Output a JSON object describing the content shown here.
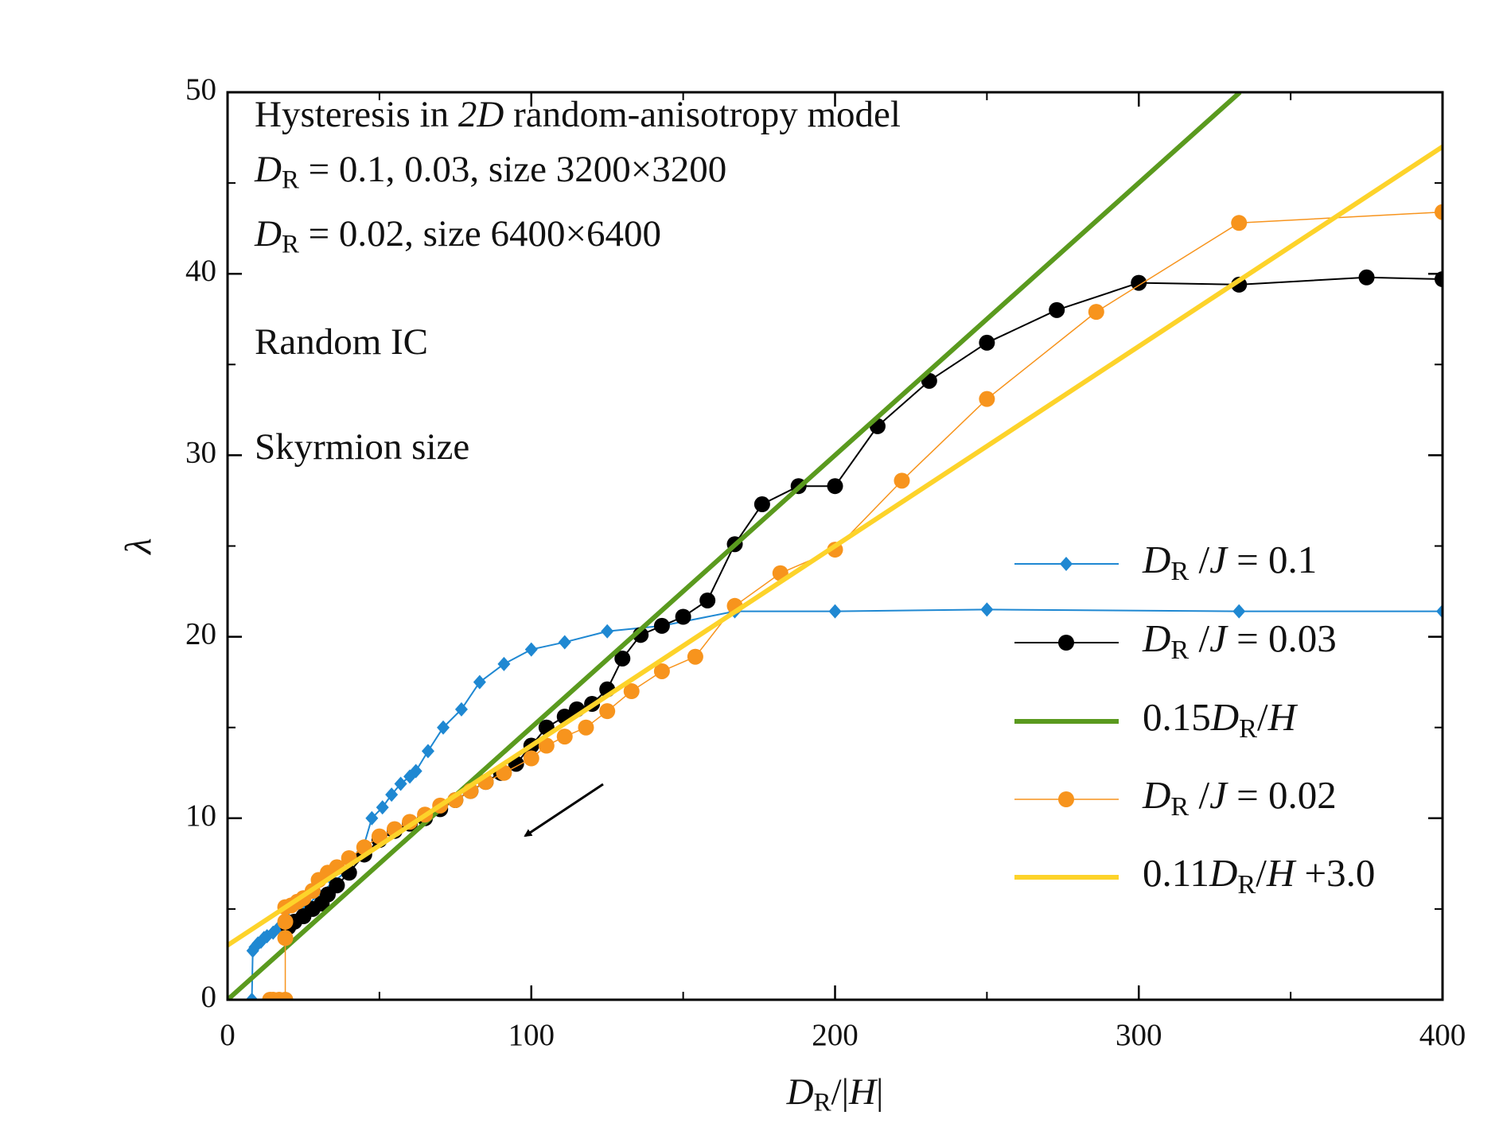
{
  "chart_data": {
    "type": "line",
    "annotations": [
      [
        {
          "t": "Hysteresis in ",
          "s": "n"
        },
        {
          "t": "2D",
          "s": "i"
        },
        {
          "t": " random-anisotropy model",
          "s": "n"
        }
      ],
      [
        {
          "t": "D",
          "s": "i"
        },
        {
          "t": "R",
          "s": "sub"
        },
        {
          "t": " = 0.1, 0.03, size 3200×3200",
          "s": "n"
        }
      ],
      [
        {
          "t": "D",
          "s": "i"
        },
        {
          "t": "R",
          "s": "sub"
        },
        {
          "t": " = 0.02, size 6400×6400",
          "s": "n"
        }
      ],
      [
        {
          "t": "Random IC",
          "s": "n"
        }
      ],
      [
        {
          "t": "Skyrmion size",
          "s": "n"
        }
      ]
    ],
    "xlabel": [
      {
        "t": "D",
        "s": "i"
      },
      {
        "t": "R",
        "s": "sub"
      },
      {
        "t": "/|",
        "s": "n"
      },
      {
        "t": "H",
        "s": "i"
      },
      {
        "t": "|",
        "s": "n"
      }
    ],
    "ylabel": [
      {
        "t": "λ",
        "s": "i"
      }
    ],
    "xlim": [
      0,
      400
    ],
    "ylim": [
      0,
      50
    ],
    "xticks": [
      0,
      100,
      200,
      300,
      400
    ],
    "yticks": [
      0,
      10,
      20,
      30,
      40,
      50
    ],
    "xminorticks": [
      50,
      150,
      250,
      350
    ],
    "yminorticks": [
      5,
      15,
      25,
      35,
      45
    ],
    "legend": "right",
    "series": [
      {
        "name": [
          {
            "t": "D",
            "s": "i"
          },
          {
            "t": "R",
            "s": "sub"
          },
          {
            "t": " /",
            "s": "n"
          },
          {
            "t": "J",
            "s": "i"
          },
          {
            "t": " = 0.1",
            "s": "n"
          }
        ],
        "color": "#1f88d2",
        "marker": "diamond",
        "width": 2,
        "x": [
          8,
          8.3,
          9,
          10,
          11,
          12,
          13,
          15,
          17,
          20,
          25,
          30,
          35,
          40,
          44,
          47.5,
          51,
          54,
          57,
          60,
          62,
          66,
          71,
          77,
          83,
          91,
          100,
          111,
          125,
          143,
          167,
          200,
          250,
          333,
          400
        ],
        "values": [
          0,
          2.7,
          2.9,
          3.1,
          3.2,
          3.4,
          3.5,
          3.7,
          4.0,
          4.4,
          5.0,
          5.8,
          6.5,
          7.2,
          8.0,
          10.0,
          10.6,
          11.3,
          11.9,
          12.3,
          12.6,
          13.7,
          15.0,
          16.0,
          17.5,
          18.5,
          19.3,
          19.7,
          20.3,
          20.6,
          21.4,
          21.4,
          21.5,
          21.4,
          21.4
        ]
      },
      {
        "name": [
          {
            "t": "D",
            "s": "i"
          },
          {
            "t": "R",
            "s": "sub"
          },
          {
            "t": " /",
            "s": "n"
          },
          {
            "t": "J",
            "s": "i"
          },
          {
            "t": " = 0.03",
            "s": "n"
          }
        ],
        "color": "#000000",
        "marker": "circle",
        "width": 2,
        "x": [
          20,
          22,
          25,
          28,
          31,
          33,
          36,
          40,
          45,
          50,
          55,
          60,
          65,
          70,
          75,
          80,
          85,
          90,
          95,
          100,
          105,
          111,
          115,
          120,
          125,
          130,
          136,
          143,
          150,
          158,
          167,
          176,
          188,
          200,
          214,
          231,
          250,
          273,
          300,
          333,
          375,
          400
        ],
        "values": [
          4.0,
          4.3,
          4.6,
          5.0,
          5.3,
          5.8,
          6.3,
          7.0,
          8.0,
          8.8,
          9.3,
          9.7,
          10.0,
          10.5,
          11.0,
          11.5,
          12.0,
          12.5,
          13.0,
          14.0,
          15.0,
          15.6,
          16.0,
          16.3,
          17.1,
          18.8,
          20.1,
          20.6,
          21.1,
          22.0,
          25.1,
          27.3,
          28.3,
          28.3,
          31.6,
          34.1,
          36.2,
          38.0,
          39.5,
          39.4,
          39.8,
          39.7
        ]
      },
      {
        "name": [
          {
            "t": "0.15",
            "s": "n"
          },
          {
            "t": "D",
            "s": "i"
          },
          {
            "t": "R",
            "s": "sub"
          },
          {
            "t": "/",
            "s": "n"
          },
          {
            "t": "H",
            "s": "i"
          }
        ],
        "color": "#5a9a1e",
        "marker": "none",
        "width": 6,
        "x": [
          0,
          333.3
        ],
        "values": [
          0,
          50
        ]
      },
      {
        "name": [
          {
            "t": "D",
            "s": "i"
          },
          {
            "t": "R",
            "s": "sub"
          },
          {
            "t": " /",
            "s": "n"
          },
          {
            "t": "J",
            "s": "i"
          },
          {
            "t": " = 0.02",
            "s": "n"
          }
        ],
        "color": "#f7941d",
        "marker": "circle",
        "width": 1.5,
        "x": [
          14,
          15,
          17,
          19,
          19,
          19,
          19,
          21,
          23,
          25,
          28,
          30,
          33,
          36,
          40,
          45,
          50,
          55,
          60,
          65,
          70,
          75,
          80,
          85,
          91,
          100,
          105,
          111,
          118,
          125,
          133,
          143,
          154,
          167,
          182,
          200,
          222,
          250,
          286,
          333,
          400
        ],
        "values": [
          0,
          0,
          0,
          0,
          3.4,
          4.3,
          5.1,
          5.2,
          5.4,
          5.6,
          6.0,
          6.6,
          7.0,
          7.3,
          7.8,
          8.4,
          9.0,
          9.4,
          9.8,
          10.2,
          10.7,
          11.0,
          11.5,
          12.0,
          12.5,
          13.3,
          14.0,
          14.5,
          15.0,
          15.9,
          17.0,
          18.1,
          18.9,
          21.7,
          23.5,
          24.8,
          28.6,
          33.1,
          37.9,
          42.8,
          43.4
        ]
      },
      {
        "name": [
          {
            "t": "0.11",
            "s": "n"
          },
          {
            "t": "D",
            "s": "i"
          },
          {
            "t": "R",
            "s": "sub"
          },
          {
            "t": "/",
            "s": "n"
          },
          {
            "t": "H",
            "s": "i"
          },
          {
            "t": " +3.0",
            "s": "n"
          }
        ],
        "color": "#fdd32a",
        "marker": "none",
        "width": 6,
        "x": [
          0,
          400
        ],
        "values": [
          3,
          47
        ]
      }
    ]
  }
}
